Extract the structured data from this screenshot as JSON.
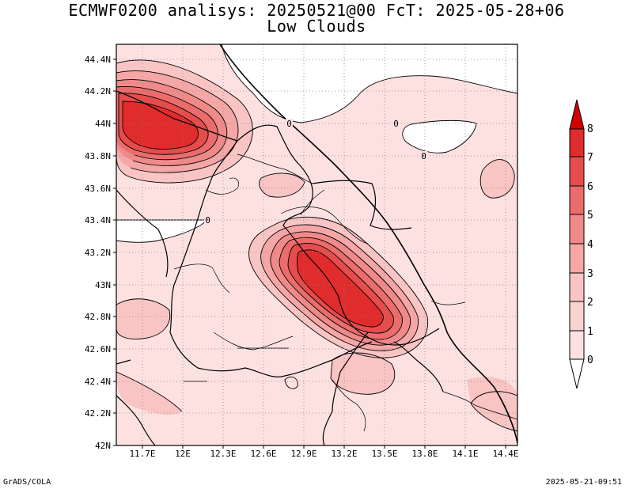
{
  "title": {
    "line1": "ECMWF0200 analisys: 20250521@00 FcT: 2025-05-28+06",
    "line2": "Low Clouds"
  },
  "axes": {
    "lon_labels": [
      "11.7E",
      "12E",
      "12.3E",
      "12.6E",
      "12.9E",
      "13.2E",
      "13.5E",
      "13.8E",
      "14.1E",
      "14.4E"
    ],
    "lat_labels": [
      "44.4N",
      "44.2N",
      "44N",
      "43.8N",
      "43.6N",
      "43.4N",
      "43.2N",
      "43N",
      "42.8N",
      "42.6N",
      "42.4N",
      "42.2N",
      "42N"
    ],
    "lon_range": [
      11.55,
      14.45
    ],
    "lat_range": [
      42.0,
      44.45
    ],
    "grid": "dotted"
  },
  "contour_labels": [
    "0",
    "0",
    "0",
    "0"
  ],
  "colorbar": {
    "levels": [
      "0",
      "1",
      "2",
      "3",
      "4",
      "5",
      "6",
      "7",
      "8"
    ],
    "colors": [
      "#ffffff",
      "#fde1e1",
      "#f9c4c4",
      "#f5a6a6",
      "#f08a8a",
      "#eb6c6c",
      "#e64c4c",
      "#e02c2c",
      "#d10000"
    ]
  },
  "footer": {
    "left": "GrADS/COLA",
    "right": "2025-05-21-09:51"
  }
}
